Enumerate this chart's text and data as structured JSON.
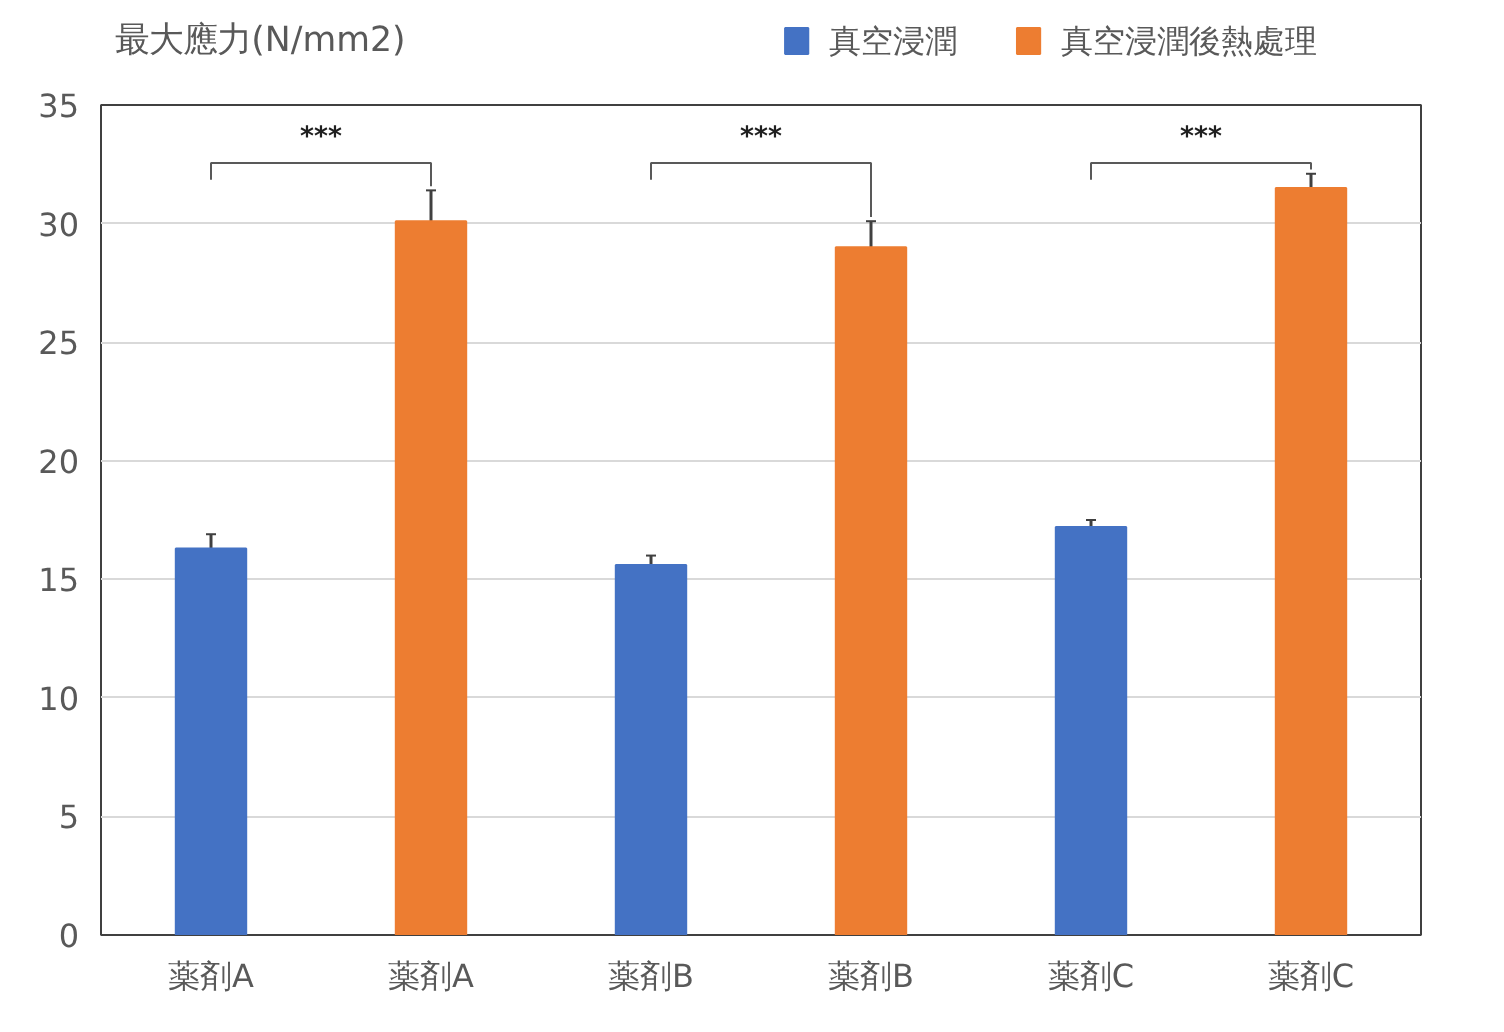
{
  "chart_data": {
    "type": "bar",
    "ylabel": "最大應力(N/mm2)",
    "categories": [
      "薬剤A",
      "薬剤A",
      "薬剤B",
      "薬剤B",
      "薬剤C",
      "薬剤C"
    ],
    "series": [
      {
        "name": "真空浸潤",
        "color": "#4472c4",
        "values": [
          16.3,
          null,
          15.6,
          null,
          17.2,
          null
        ],
        "errors": [
          0.6,
          null,
          0.4,
          null,
          0.3,
          null
        ]
      },
      {
        "name": "真空浸潤後熱處理",
        "color": "#ed7d31",
        "values": [
          null,
          30.1,
          null,
          29.0,
          null,
          31.5
        ],
        "errors": [
          null,
          1.3,
          null,
          1.1,
          null,
          0.6
        ]
      }
    ],
    "ylim": [
      0,
      35
    ],
    "yticks": [
      0,
      5,
      10,
      15,
      20,
      25,
      30,
      35
    ],
    "grid": "y",
    "legend": "top right",
    "annotations": [
      "***",
      "***",
      "***"
    ]
  }
}
